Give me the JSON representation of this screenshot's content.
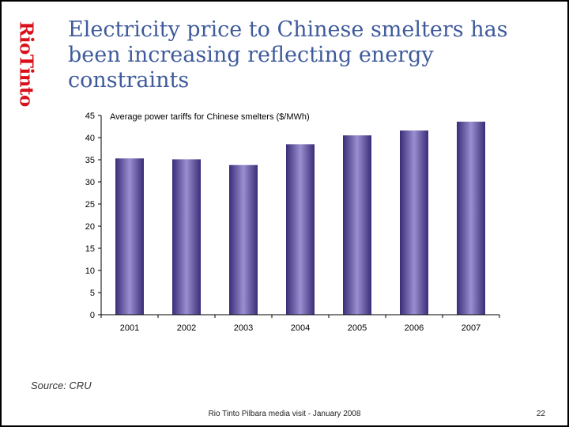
{
  "brand": {
    "name": "RioTinto",
    "color": "#d9101a"
  },
  "slide": {
    "title": "Electricity price to Chinese smelters has been increasing reflecting energy constraints",
    "source": "Source: CRU",
    "footer": "Rio Tinto Pilbara media visit - January 2008",
    "page_number": "22"
  },
  "colors": {
    "title": "#3f5b9b",
    "bar_edge": "#3b2c78",
    "bar_center": "#9a8fd0",
    "bar_dark": "#3b2c78"
  },
  "chart_data": {
    "type": "bar",
    "title": "Average power tariffs for Chinese smelters ($/MWh)",
    "categories": [
      "2001",
      "2002",
      "2003",
      "2004",
      "2005",
      "2006",
      "2007"
    ],
    "values": [
      35.3,
      35.1,
      33.8,
      38.5,
      40.5,
      41.6,
      43.6
    ],
    "xlabel": "",
    "ylabel": "",
    "ylim": [
      0,
      45
    ],
    "yticks": [
      "0",
      "5",
      "10",
      "15",
      "20",
      "25",
      "30",
      "35",
      "40",
      "45"
    ],
    "grid": false,
    "legend": "none"
  }
}
